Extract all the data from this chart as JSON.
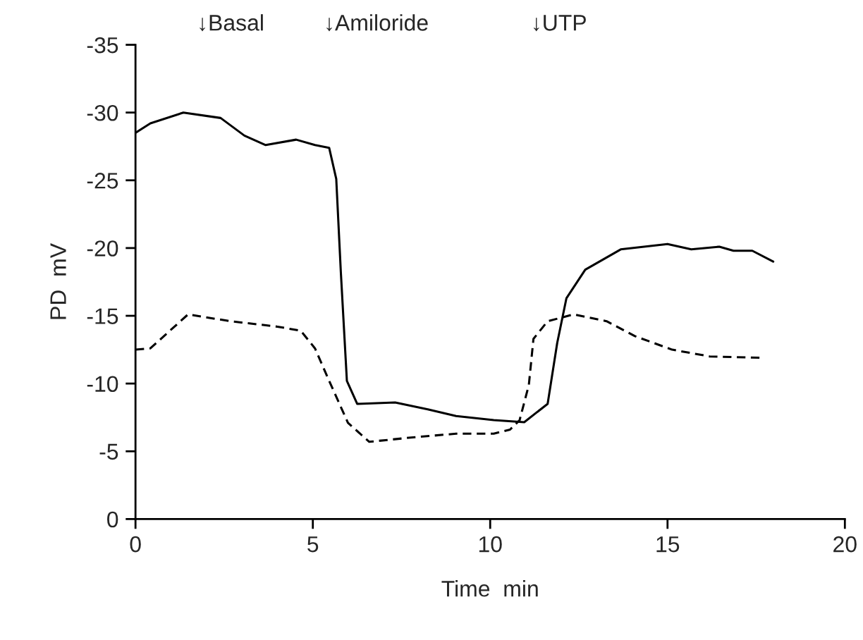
{
  "chart_data": {
    "type": "line",
    "xlabel": "Time  min",
    "ylabel": "PD  mV",
    "xlim": [
      0,
      20
    ],
    "xticks": [
      0,
      5,
      10,
      15,
      20
    ],
    "ylim": [
      0,
      -35
    ],
    "yticks": [
      0,
      -5,
      -10,
      -15,
      -20,
      -25,
      -30,
      -35
    ],
    "grid": false,
    "legend": false,
    "marker": "none",
    "series": [
      {
        "color": "#000000",
        "line_style": "solid",
        "x": [
          0,
          0.42,
          1.35,
          2.4,
          3.07,
          3.67,
          4.53,
          5.06,
          5.46,
          5.66,
          5.79,
          5.96,
          6.25,
          7.32,
          8.24,
          9.04,
          10.1,
          10.96,
          11.62,
          11.89,
          12.15,
          12.68,
          13.68,
          15.0,
          15.67,
          16.46,
          16.86,
          17.39,
          17.98
        ],
        "values": [
          -28.5,
          -29.2,
          -30,
          -29.6,
          -28.3,
          -27.6,
          -28.0,
          -27.6,
          -27.4,
          -25.1,
          -18.2,
          -10.2,
          -8.5,
          -8.6,
          -8.1,
          -7.6,
          -7.3,
          -7.15,
          -8.5,
          -13,
          -16.3,
          -18.4,
          -19.9,
          -20.3,
          -19.9,
          -20.1,
          -19.8,
          -19.8,
          -19.0
        ]
      },
      {
        "color": "#000000",
        "line_style": "dashed",
        "x": [
          0,
          0.42,
          1.48,
          2.68,
          4.0,
          4.66,
          5.06,
          5.46,
          5.99,
          6.59,
          7.71,
          9.04,
          10.1,
          10.56,
          10.83,
          11.09,
          11.22,
          11.62,
          12.35,
          13.28,
          14.08,
          15.13,
          16.19,
          17.65
        ],
        "values": [
          -12.5,
          -12.6,
          -15.1,
          -14.6,
          -14.2,
          -13.9,
          -12.6,
          -10.2,
          -7.1,
          -5.7,
          -6.0,
          -6.3,
          -6.3,
          -6.6,
          -7.3,
          -9.9,
          -13.3,
          -14.6,
          -15.1,
          -14.6,
          -13.5,
          -12.5,
          -12.0,
          -11.9
        ]
      }
    ],
    "annotations": [
      "↓Basal",
      "↓Amiloride",
      "↓UTP"
    ]
  }
}
